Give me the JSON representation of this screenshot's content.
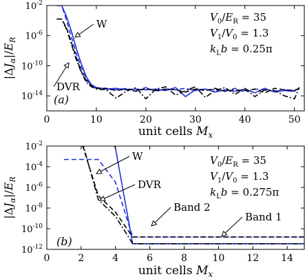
{
  "chart_data": [
    {
      "type": "line",
      "panel_label": "(a)",
      "xlabel": "unit cells M_x",
      "ylabel": "|ΔJ_α|/E_R",
      "xlim": [
        0,
        52
      ],
      "ylim_log10": [
        -16,
        -2
      ],
      "log_y": true,
      "x_ticks": [
        0,
        10,
        20,
        30,
        40,
        50
      ],
      "x_tick_labels": [
        "0",
        "10",
        "20",
        "30",
        "40",
        "50"
      ],
      "y_ticks_log10": [
        -2,
        -6,
        -10,
        -14
      ],
      "y_tick_labels": [
        "10",
        "10",
        "10",
        "10"
      ],
      "y_tick_exponents": [
        "-2",
        "-6",
        "-10",
        "-14"
      ],
      "params": [
        "V0/ER = 35",
        "V1/V0 = 1.3",
        "kLb = 0.25π"
      ],
      "annotations": [
        {
          "text": "W",
          "series": 0
        },
        {
          "text": "DVR",
          "series": 2
        }
      ],
      "series": [
        {
          "color": "#1f2fd6",
          "dash": "solid",
          "x": [
            2,
            3,
            4,
            5,
            6,
            7,
            8,
            9,
            10,
            11,
            12,
            14,
            16,
            18,
            20,
            22,
            24,
            26,
            28,
            30,
            32,
            34,
            36,
            38,
            40,
            42,
            44,
            46,
            48,
            50,
            51
          ],
          "log10y": [
            -2,
            -2,
            -3.5,
            -5.5,
            -7.8,
            -9.8,
            -11.5,
            -12.5,
            -12.9,
            -13,
            -13.1,
            -13,
            -13.2,
            -13.1,
            -13.2,
            -13.1,
            -13.3,
            -12.9,
            -14.1,
            -13.2,
            -13.1,
            -13.5,
            -13.2,
            -13.4,
            -13.1,
            -13.6,
            -13.0,
            -13.5,
            -13.3,
            -13.4,
            -12.9
          ]
        },
        {
          "color": "#1f2fd6",
          "dash": "dashed",
          "x": [
            2,
            3,
            4,
            5,
            6,
            7,
            8,
            9,
            10,
            12,
            14,
            16,
            18,
            20,
            22,
            24,
            26,
            28,
            30,
            32,
            34,
            36,
            38,
            40,
            42,
            44,
            46,
            48,
            50,
            51
          ],
          "log10y": [
            -2,
            -2,
            -4,
            -6.3,
            -8.5,
            -10.3,
            -11.8,
            -12.6,
            -13,
            -13.1,
            -13.2,
            -13,
            -13.3,
            -12.9,
            -13.4,
            -13.1,
            -13.2,
            -13.0,
            -13.3,
            -13.1,
            -13.2,
            -13.4,
            -13.0,
            -13.5,
            -13.1,
            -13.2,
            -13.4,
            -13.2,
            -13.3,
            -12.9
          ]
        },
        {
          "color": "#000000",
          "dash": "dashdot",
          "x": [
            2,
            3,
            4,
            5,
            6,
            7,
            8,
            9,
            10,
            12,
            14,
            16,
            18,
            20,
            22,
            24,
            26,
            28,
            30,
            32,
            34,
            36,
            38,
            40,
            42,
            44,
            46,
            48,
            50,
            51
          ],
          "log10y": [
            -3.8,
            -3.8,
            -5.2,
            -7.2,
            -9.3,
            -10.9,
            -12.2,
            -12.8,
            -13.1,
            -13.2,
            -14.3,
            -13.4,
            -12.9,
            -14.4,
            -13.1,
            -12.8,
            -13.9,
            -13.3,
            -12.8,
            -14.2,
            -13.3,
            -12.9,
            -13.8,
            -13.0,
            -14.1,
            -13.2,
            -13.3,
            -14.0,
            -14.4,
            -12.9
          ]
        },
        {
          "color": "#000000",
          "dash": "dashed",
          "x": [
            2,
            3,
            4,
            5,
            6,
            7,
            8,
            9,
            10,
            12,
            14,
            16,
            18,
            20,
            22,
            24,
            26,
            28,
            30,
            32,
            34,
            36,
            38,
            40,
            42,
            44,
            46,
            48,
            50,
            51
          ],
          "log10y": [
            -3.8,
            -3.8,
            -5.0,
            -7.0,
            -9.0,
            -10.8,
            -12.0,
            -12.7,
            -13.0,
            -13.0,
            -13.3,
            -13.1,
            -13.4,
            -13.0,
            -13.3,
            -13.1,
            -13.2,
            -13.5,
            -13.1,
            -13.3,
            -13.0,
            -13.4,
            -13.2,
            -13.3,
            -13.1,
            -13.6,
            -13.0,
            -13.2,
            -13.3,
            -13.0
          ]
        }
      ]
    },
    {
      "type": "line",
      "panel_label": "(b)",
      "xlabel": "unit cells M_x",
      "ylabel": "|ΔJ_α|/E_R",
      "xlim": [
        0,
        15
      ],
      "ylim_log10": [
        -12,
        -2
      ],
      "log_y": true,
      "x_ticks": [
        0,
        2,
        4,
        6,
        8,
        10,
        12,
        14
      ],
      "x_tick_labels": [
        "0",
        "2",
        "4",
        "6",
        "8",
        "10",
        "12",
        "14"
      ],
      "y_ticks_log10": [
        -2,
        -4,
        -6,
        -8,
        -10,
        -12
      ],
      "y_tick_labels": [
        "10",
        "10",
        "10",
        "10",
        "10",
        "10"
      ],
      "y_tick_exponents": [
        "-2",
        "-4",
        "-6",
        "-8",
        "-10",
        "-12"
      ],
      "params": [
        "V0/ER = 35",
        "V1/V0 = 1.3",
        "kLb = 0.275π"
      ],
      "annotations": [
        {
          "text": "W",
          "series": 0
        },
        {
          "text": "DVR",
          "series": 2
        },
        {
          "text": "Band 2",
          "series": 1
        },
        {
          "text": "Band 1",
          "series": 0
        }
      ],
      "series": [
        {
          "color": "#1f2fd6",
          "dash": "solid",
          "x": [
            1,
            2,
            3,
            4,
            5,
            6,
            8,
            10,
            12,
            14,
            15
          ],
          "log10y": [
            1,
            1,
            0.8,
            -2.2,
            -11.45,
            -11.45,
            -11.45,
            -11.45,
            -11.45,
            -11.45,
            -11.45
          ]
        },
        {
          "color": "#1f2fd6",
          "dash": "dashed",
          "x": [
            1,
            2,
            3,
            4,
            5,
            6,
            8,
            10,
            12,
            14,
            15
          ],
          "log10y": [
            -3.3,
            -3.3,
            -3.3,
            -5.5,
            -10.8,
            -10.8,
            -10.8,
            -10.8,
            -10.8,
            -10.8,
            -10.8
          ]
        },
        {
          "color": "#000000",
          "dash": "dashdot",
          "x": [
            1,
            2,
            3,
            4,
            5,
            6,
            8,
            10,
            12,
            14,
            15
          ],
          "log10y": [
            -1,
            -1.2,
            -7.2,
            -8.8,
            -11.45,
            -11.45,
            -11.45,
            -11.45,
            -11.45,
            -11.45,
            -11.45
          ]
        },
        {
          "color": "#000000",
          "dash": "dashed",
          "x": [
            1,
            2,
            3,
            4,
            5,
            6,
            8,
            10,
            12,
            14,
            15
          ],
          "log10y": [
            -1,
            -1.5,
            -6.8,
            -8.4,
            -10.8,
            -10.8,
            -10.8,
            -10.8,
            -10.8,
            -10.8,
            -10.8
          ]
        }
      ]
    }
  ]
}
